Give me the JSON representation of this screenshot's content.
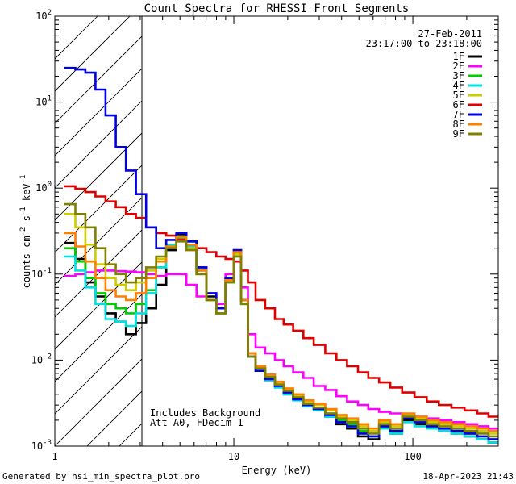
{
  "chart_data": {
    "type": "line",
    "title": "Count Spectra for RHESSI Front Segments",
    "xlabel": "Energy (keV)",
    "ylabel_parts": {
      "base": "counts cm",
      "exp1": "-2",
      "mid": " s",
      "exp2": "-1",
      "tail": " keV",
      "exp3": "-1"
    },
    "x_scale": "log",
    "y_scale": "log",
    "xlim": [
      1,
      300
    ],
    "ylim": [
      0.001,
      100
    ],
    "x_ticks": [
      {
        "value": 1,
        "label": "1"
      },
      {
        "value": 10,
        "label": "10"
      },
      {
        "value": 100,
        "label": "100"
      }
    ],
    "y_ticks": [
      {
        "value": 0.001,
        "base": "10",
        "exp": "-3"
      },
      {
        "value": 0.01,
        "base": "10",
        "exp": "-2"
      },
      {
        "value": 0.1,
        "base": "10",
        "exp": "-1"
      },
      {
        "value": 1,
        "base": "10",
        "exp": "0"
      },
      {
        "value": 10,
        "base": "10",
        "exp": "1"
      },
      {
        "value": 100,
        "base": "10",
        "exp": "2"
      }
    ],
    "excluded_region": {
      "x_from": 1,
      "x_to": 3,
      "style": "hatched"
    },
    "legend_position": "top-right",
    "date_label": "27-Feb-2011",
    "time_label": "23:17:00 to 23:18:00",
    "annotations": [
      "Includes Background",
      "Att A0, FDecim 1"
    ],
    "series": [
      {
        "name": "1F",
        "color": "#000000",
        "x": [
          1.22,
          1.39,
          1.58,
          1.8,
          2.05,
          2.34,
          2.66,
          3.03,
          3.45,
          3.93,
          4.47,
          5.09,
          5.8,
          6.6,
          7.5,
          8.5,
          9.5,
          10.5,
          11.5,
          12.5,
          14,
          16,
          18,
          20,
          23,
          26,
          30,
          35,
          40,
          46,
          53,
          60,
          70,
          80,
          95,
          110,
          130,
          150,
          180,
          210,
          250,
          280
        ],
        "y": [
          0.23,
          0.15,
          0.08,
          0.055,
          0.035,
          0.028,
          0.02,
          0.027,
          0.04,
          0.075,
          0.19,
          0.29,
          0.24,
          0.12,
          0.055,
          0.04,
          0.09,
          0.17,
          0.05,
          0.012,
          0.008,
          0.006,
          0.005,
          0.004,
          0.0035,
          0.003,
          0.0028,
          0.0022,
          0.0018,
          0.0016,
          0.0013,
          0.0012,
          0.0016,
          0.0014,
          0.002,
          0.0018,
          0.0016,
          0.0015,
          0.0014,
          0.0013,
          0.0012,
          0.0011
        ]
      },
      {
        "name": "2F",
        "color": "#ff00ff",
        "x": [
          1.22,
          1.39,
          1.58,
          1.8,
          2.05,
          2.34,
          2.66,
          3.03,
          3.45,
          3.93,
          4.47,
          5.09,
          5.8,
          6.6,
          7.5,
          8.5,
          9.5,
          10.5,
          11.5,
          12.5,
          14,
          16,
          18,
          20,
          23,
          26,
          30,
          35,
          40,
          46,
          53,
          60,
          70,
          80,
          95,
          110,
          130,
          150,
          180,
          210,
          250,
          280
        ],
        "y": [
          0.095,
          0.1,
          0.105,
          0.11,
          0.11,
          0.108,
          0.107,
          0.105,
          0.1,
          0.095,
          0.1,
          0.1,
          0.075,
          0.055,
          0.05,
          0.045,
          0.1,
          0.18,
          0.07,
          0.02,
          0.014,
          0.012,
          0.01,
          0.0085,
          0.0072,
          0.0062,
          0.005,
          0.0045,
          0.0038,
          0.0033,
          0.003,
          0.0027,
          0.0025,
          0.0024,
          0.0023,
          0.0022,
          0.0021,
          0.002,
          0.0019,
          0.0018,
          0.0017,
          0.0016
        ]
      },
      {
        "name": "3F",
        "color": "#00cc00",
        "x": [
          1.22,
          1.39,
          1.58,
          1.8,
          2.05,
          2.34,
          2.66,
          3.03,
          3.45,
          3.93,
          4.47,
          5.09,
          5.8,
          6.6,
          7.5,
          8.5,
          9.5,
          10.5,
          11.5,
          12.5,
          14,
          16,
          18,
          20,
          23,
          26,
          30,
          35,
          40,
          46,
          53,
          60,
          70,
          80,
          95,
          110,
          130,
          150,
          180,
          210,
          250,
          280
        ],
        "y": [
          0.2,
          0.14,
          0.09,
          0.06,
          0.045,
          0.04,
          0.035,
          0.045,
          0.065,
          0.12,
          0.2,
          0.26,
          0.2,
          0.1,
          0.05,
          0.035,
          0.08,
          0.16,
          0.045,
          0.011,
          0.0075,
          0.006,
          0.005,
          0.0042,
          0.0036,
          0.003,
          0.0028,
          0.0024,
          0.002,
          0.0018,
          0.0015,
          0.0013,
          0.0017,
          0.0015,
          0.0021,
          0.0019,
          0.0017,
          0.0016,
          0.0015,
          0.0014,
          0.0013,
          0.0012
        ]
      },
      {
        "name": "4F",
        "color": "#00e0e0",
        "x": [
          1.22,
          1.39,
          1.58,
          1.8,
          2.05,
          2.34,
          2.66,
          3.03,
          3.45,
          3.93,
          4.47,
          5.09,
          5.8,
          6.6,
          7.5,
          8.5,
          9.5,
          10.5,
          11.5,
          12.5,
          14,
          16,
          18,
          20,
          23,
          26,
          30,
          35,
          40,
          46,
          53,
          60,
          70,
          80,
          95,
          110,
          130,
          150,
          180,
          210,
          250,
          280
        ],
        "y": [
          0.16,
          0.11,
          0.07,
          0.045,
          0.03,
          0.028,
          0.025,
          0.035,
          0.06,
          0.12,
          0.22,
          0.27,
          0.21,
          0.11,
          0.05,
          0.035,
          0.08,
          0.18,
          0.05,
          0.011,
          0.0075,
          0.0058,
          0.0048,
          0.004,
          0.0034,
          0.0029,
          0.0026,
          0.0022,
          0.0019,
          0.0017,
          0.0014,
          0.0013,
          0.0016,
          0.0014,
          0.0019,
          0.0017,
          0.0016,
          0.0015,
          0.0014,
          0.0013,
          0.0012,
          0.0011
        ]
      },
      {
        "name": "5F",
        "color": "#cccc00",
        "x": [
          1.22,
          1.39,
          1.58,
          1.8,
          2.05,
          2.34,
          2.66,
          3.03,
          3.45,
          3.93,
          4.47,
          5.09,
          5.8,
          6.6,
          7.5,
          8.5,
          9.5,
          10.5,
          11.5,
          12.5,
          14,
          16,
          18,
          20,
          23,
          26,
          30,
          35,
          40,
          46,
          53,
          60,
          70,
          80,
          95,
          110,
          130,
          150,
          180,
          210,
          250,
          280
        ],
        "y": [
          0.5,
          0.35,
          0.22,
          0.13,
          0.09,
          0.075,
          0.065,
          0.08,
          0.11,
          0.15,
          0.2,
          0.25,
          0.2,
          0.1,
          0.05,
          0.035,
          0.08,
          0.17,
          0.05,
          0.012,
          0.0085,
          0.0068,
          0.0055,
          0.0046,
          0.0039,
          0.0033,
          0.003,
          0.0026,
          0.0022,
          0.002,
          0.0017,
          0.0015,
          0.0019,
          0.0017,
          0.0023,
          0.0021,
          0.0019,
          0.0018,
          0.0017,
          0.0016,
          0.0015,
          0.0014
        ]
      },
      {
        "name": "6F",
        "color": "#e00000",
        "x": [
          1.22,
          1.39,
          1.58,
          1.8,
          2.05,
          2.34,
          2.66,
          3.03,
          3.45,
          3.93,
          4.47,
          5.09,
          5.8,
          6.6,
          7.5,
          8.5,
          9.5,
          10.5,
          11.5,
          12.5,
          14,
          16,
          18,
          20,
          23,
          26,
          30,
          35,
          40,
          46,
          53,
          60,
          70,
          80,
          95,
          110,
          130,
          150,
          180,
          210,
          250,
          280
        ],
        "y": [
          1.05,
          0.98,
          0.9,
          0.8,
          0.7,
          0.6,
          0.5,
          0.45,
          0.35,
          0.3,
          0.28,
          0.25,
          0.22,
          0.2,
          0.18,
          0.16,
          0.15,
          0.14,
          0.11,
          0.08,
          0.05,
          0.04,
          0.03,
          0.026,
          0.022,
          0.018,
          0.015,
          0.012,
          0.01,
          0.0085,
          0.0072,
          0.0062,
          0.0055,
          0.0048,
          0.0042,
          0.0037,
          0.0033,
          0.003,
          0.0028,
          0.0026,
          0.0024,
          0.0022
        ]
      },
      {
        "name": "7F",
        "color": "#0000e0",
        "x": [
          1.22,
          1.39,
          1.58,
          1.8,
          2.05,
          2.34,
          2.66,
          3.03,
          3.45,
          3.93,
          4.47,
          5.09,
          5.8,
          6.6,
          7.5,
          8.5,
          9.5,
          10.5,
          11.5,
          12.5,
          14,
          16,
          18,
          20,
          23,
          26,
          30,
          35,
          40,
          46,
          53,
          60,
          70,
          80,
          95,
          110,
          130,
          150,
          180,
          210,
          250,
          280
        ],
        "y": [
          25,
          24,
          22,
          14,
          7,
          3,
          1.6,
          0.85,
          0.35,
          0.2,
          0.25,
          0.3,
          0.24,
          0.12,
          0.06,
          0.04,
          0.09,
          0.19,
          0.05,
          0.011,
          0.0075,
          0.006,
          0.005,
          0.0042,
          0.0035,
          0.003,
          0.0027,
          0.0023,
          0.0019,
          0.0017,
          0.0014,
          0.0013,
          0.0017,
          0.0015,
          0.0021,
          0.0019,
          0.0017,
          0.0016,
          0.0015,
          0.0014,
          0.0013,
          0.0012
        ]
      },
      {
        "name": "8F",
        "color": "#ff8000",
        "x": [
          1.22,
          1.39,
          1.58,
          1.8,
          2.05,
          2.34,
          2.66,
          3.03,
          3.45,
          3.93,
          4.47,
          5.09,
          5.8,
          6.6,
          7.5,
          8.5,
          9.5,
          10.5,
          11.5,
          12.5,
          14,
          16,
          18,
          20,
          23,
          26,
          30,
          35,
          40,
          46,
          53,
          60,
          70,
          80,
          95,
          110,
          130,
          150,
          180,
          210,
          250,
          280
        ],
        "y": [
          0.3,
          0.21,
          0.14,
          0.09,
          0.065,
          0.055,
          0.05,
          0.06,
          0.09,
          0.14,
          0.21,
          0.27,
          0.22,
          0.11,
          0.05,
          0.035,
          0.085,
          0.18,
          0.05,
          0.012,
          0.0085,
          0.0068,
          0.0056,
          0.0047,
          0.004,
          0.0034,
          0.0031,
          0.0027,
          0.0023,
          0.0021,
          0.0018,
          0.0016,
          0.002,
          0.0018,
          0.0024,
          0.0022,
          0.002,
          0.0019,
          0.0018,
          0.0017,
          0.0016,
          0.0015
        ]
      },
      {
        "name": "9F",
        "color": "#808000",
        "x": [
          1.22,
          1.39,
          1.58,
          1.8,
          2.05,
          2.34,
          2.66,
          3.03,
          3.45,
          3.93,
          4.47,
          5.09,
          5.8,
          6.6,
          7.5,
          8.5,
          9.5,
          10.5,
          11.5,
          12.5,
          14,
          16,
          18,
          20,
          23,
          26,
          30,
          35,
          40,
          46,
          53,
          60,
          70,
          80,
          95,
          110,
          130,
          150,
          180,
          210,
          250,
          280
        ],
        "y": [
          0.65,
          0.5,
          0.35,
          0.2,
          0.13,
          0.1,
          0.08,
          0.09,
          0.12,
          0.16,
          0.2,
          0.24,
          0.19,
          0.1,
          0.05,
          0.035,
          0.08,
          0.16,
          0.045,
          0.011,
          0.008,
          0.0064,
          0.0052,
          0.0044,
          0.0037,
          0.0031,
          0.0028,
          0.0024,
          0.0021,
          0.0019,
          0.0016,
          0.0014,
          0.0018,
          0.0016,
          0.0022,
          0.002,
          0.0018,
          0.0017,
          0.0016,
          0.0015,
          0.0014,
          0.0013
        ]
      }
    ]
  },
  "footer": {
    "generated_by": "Generated by hsi_min_spectra_plot.pro",
    "timestamp": "18-Apr-2023 21:43"
  }
}
